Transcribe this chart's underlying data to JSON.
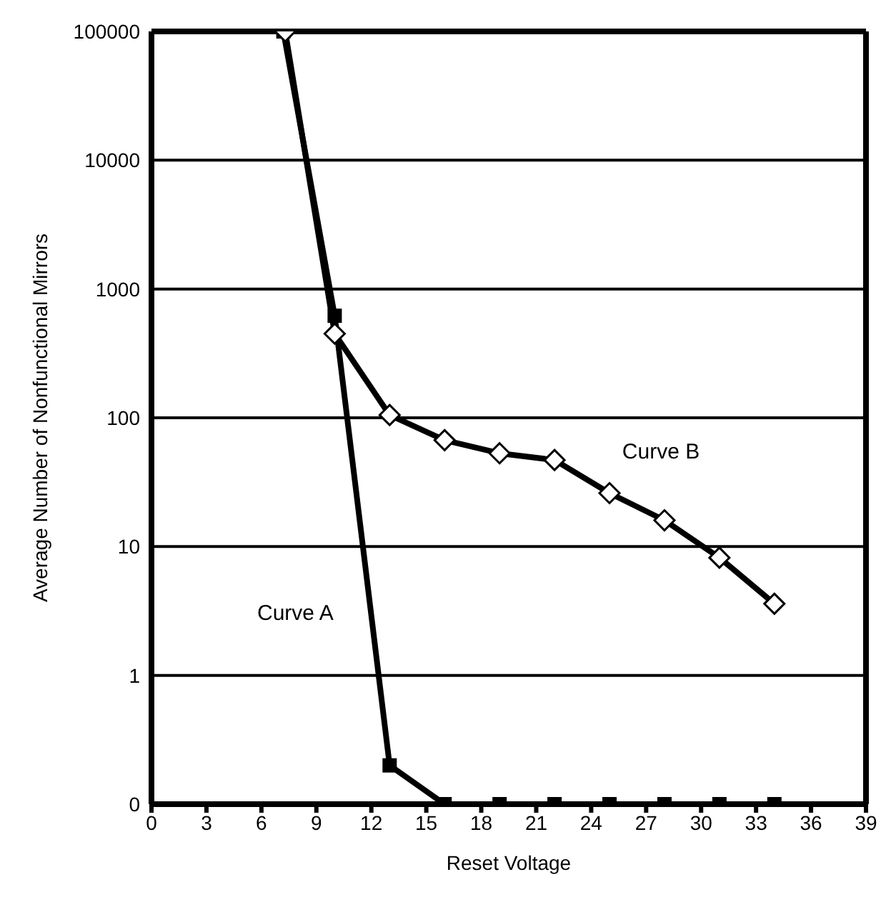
{
  "chart_data": {
    "type": "line",
    "xlabel": "Reset Voltage",
    "ylabel": "Average Number of Nonfunctional Mirrors",
    "xlim": [
      0,
      39
    ],
    "xticks": [
      0,
      3,
      6,
      9,
      12,
      15,
      18,
      21,
      24,
      27,
      30,
      33,
      36,
      39
    ],
    "ylim": [
      0.1,
      100000
    ],
    "yticks": [
      {
        "value": 0.1,
        "label": "0"
      },
      1,
      10,
      100,
      1000,
      10000,
      100000
    ],
    "log": "y",
    "grid": "y",
    "line_style": "solid",
    "series": [
      {
        "name": "Curve A",
        "color": "#000000",
        "marker": "square",
        "x": [
          7.2,
          10,
          13,
          16,
          19,
          22,
          25,
          28,
          31,
          34
        ],
        "values": [
          100000,
          620,
          0.2,
          0.1,
          0.1,
          0.1,
          0.1,
          0.1,
          0.1,
          0.1
        ]
      },
      {
        "name": "Curve B",
        "color": "#000000",
        "marker": "diamond",
        "x": [
          7.3,
          10,
          13,
          16,
          19,
          22,
          25,
          28,
          31,
          34
        ],
        "values": [
          100000,
          450,
          105,
          67,
          53,
          47,
          26,
          16,
          8.2,
          3.6
        ]
      }
    ]
  }
}
